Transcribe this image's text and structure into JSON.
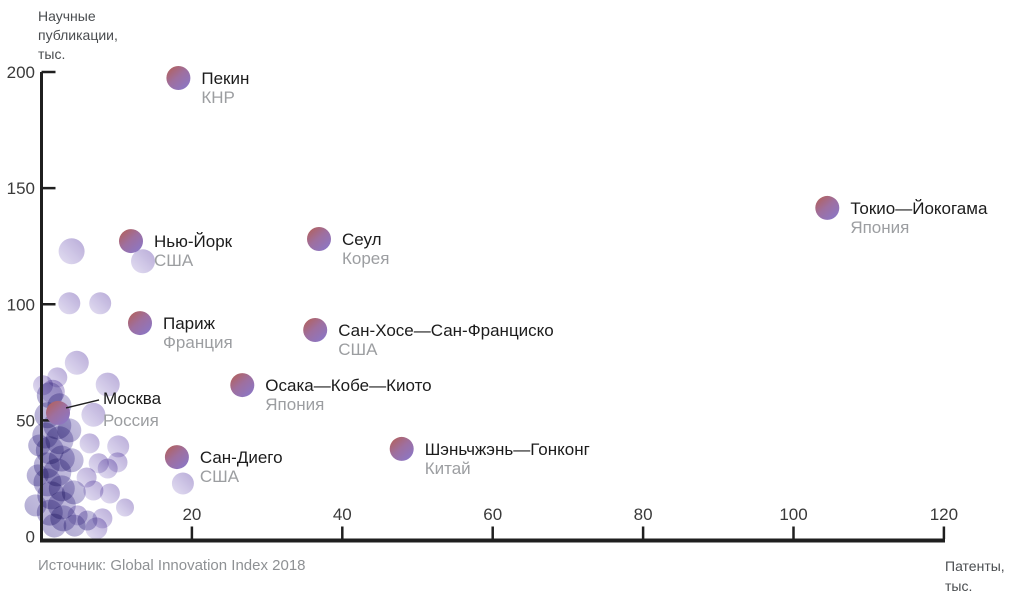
{
  "chart_data": {
    "type": "scatter",
    "title": "",
    "y_axis": {
      "title_lines": [
        "Научные",
        "публикации,",
        "тыс."
      ],
      "range": [
        0,
        200
      ],
      "ticks": [
        0,
        50,
        100,
        150,
        200
      ]
    },
    "x_axis": {
      "title_lines": [
        "Патенты,",
        "тыс."
      ],
      "range": [
        0,
        120
      ],
      "ticks": [
        20,
        40,
        60,
        80,
        100,
        120
      ]
    },
    "source": "Источник: Global Innovation Index 2018",
    "series": [
      {
        "city": "Пекин",
        "country": "КНР",
        "x": 18.2,
        "y": 197.4
      },
      {
        "city": "Токио—Йокогама",
        "country": "Япония",
        "x": 104.5,
        "y": 141.5
      },
      {
        "city": "Нью-Йорк",
        "country": "США",
        "x": 11.9,
        "y": 127.2
      },
      {
        "city": "Сеул",
        "country": "Корея",
        "x": 36.9,
        "y": 128.1
      },
      {
        "city": "Париж",
        "country": "Франция",
        "x": 13.1,
        "y": 91.9
      },
      {
        "city": "Сан-Хосе—Сан-Франциско",
        "country": "США",
        "x": 36.4,
        "y": 88.9
      },
      {
        "city": "Осака—Кобе—Киото",
        "country": "Япония",
        "x": 26.7,
        "y": 65.2
      },
      {
        "city": "Москва",
        "country": "Россия",
        "x": 2.2,
        "y": 53.2,
        "leader": true
      },
      {
        "city": "Сан-Диего",
        "country": "США",
        "x": 18.0,
        "y": 34.2
      },
      {
        "city": "Шэньчжэнь—Гонконг",
        "country": "Китай",
        "x": 47.9,
        "y": 37.7
      }
    ],
    "background_points": [
      {
        "x": 4.0,
        "y": 122.8,
        "r": 13,
        "k": "l"
      },
      {
        "x": 13.5,
        "y": 118.5,
        "r": 12,
        "k": "l"
      },
      {
        "x": 3.7,
        "y": 100.4,
        "r": 11,
        "k": "l"
      },
      {
        "x": 7.8,
        "y": 100.4,
        "r": 11,
        "k": "l"
      },
      {
        "x": 4.7,
        "y": 74.8,
        "r": 12,
        "k": "l"
      },
      {
        "x": 1.5,
        "y": 62.3,
        "r": 12,
        "k": "l"
      },
      {
        "x": 8.8,
        "y": 65.4,
        "r": 12,
        "k": "l"
      },
      {
        "x": 6.9,
        "y": 52.4,
        "r": 12,
        "k": "l"
      },
      {
        "x": 2.1,
        "y": 68.5,
        "r": 10,
        "k": "l"
      },
      {
        "x": 0.2,
        "y": 65.1,
        "r": 10,
        "k": "l"
      },
      {
        "x": 6.4,
        "y": 40.1,
        "r": 10,
        "k": "l"
      },
      {
        "x": 10.2,
        "y": 38.8,
        "r": 11,
        "k": "l"
      },
      {
        "x": 7.6,
        "y": 31.5,
        "r": 10,
        "k": "l"
      },
      {
        "x": 10.1,
        "y": 31.9,
        "r": 10,
        "k": "l"
      },
      {
        "x": 6.0,
        "y": 25.4,
        "r": 10,
        "k": "l"
      },
      {
        "x": 8.8,
        "y": 29.3,
        "r": 10,
        "k": "l"
      },
      {
        "x": 6.9,
        "y": 19.8,
        "r": 10,
        "k": "l"
      },
      {
        "x": 9.1,
        "y": 18.5,
        "r": 10,
        "k": "l"
      },
      {
        "x": 4.8,
        "y": 9.1,
        "r": 10,
        "k": "l"
      },
      {
        "x": 8.1,
        "y": 7.8,
        "r": 10,
        "k": "l"
      },
      {
        "x": 11.1,
        "y": 12.5,
        "r": 9,
        "k": "l"
      },
      {
        "x": 7.3,
        "y": 3.5,
        "r": 11,
        "k": "l"
      },
      {
        "x": 18.8,
        "y": 22.8,
        "r": 11,
        "k": "l"
      },
      {
        "x": 1.1,
        "y": 60.8,
        "r": 13,
        "k": "d"
      },
      {
        "x": 2.4,
        "y": 56.5,
        "r": 12,
        "k": "d"
      },
      {
        "x": 0.8,
        "y": 52.2,
        "r": 13,
        "k": "d"
      },
      {
        "x": 2.1,
        "y": 47.8,
        "r": 14,
        "k": "d"
      },
      {
        "x": 0.5,
        "y": 43.5,
        "r": 13,
        "k": "d"
      },
      {
        "x": 2.4,
        "y": 41.4,
        "r": 14,
        "k": "d"
      },
      {
        "x": 1.1,
        "y": 37.1,
        "r": 14,
        "k": "d"
      },
      {
        "x": 2.7,
        "y": 33.6,
        "r": 13,
        "k": "d"
      },
      {
        "x": 0.7,
        "y": 30.6,
        "r": 13,
        "k": "d"
      },
      {
        "x": 2.1,
        "y": 27.6,
        "r": 14,
        "k": "d"
      },
      {
        "x": 0.8,
        "y": 23.3,
        "r": 14,
        "k": "d"
      },
      {
        "x": 2.7,
        "y": 20.7,
        "r": 13,
        "k": "d"
      },
      {
        "x": 1.3,
        "y": 17.7,
        "r": 14,
        "k": "d"
      },
      {
        "x": 2.7,
        "y": 13.4,
        "r": 14,
        "k": "d"
      },
      {
        "x": 1.1,
        "y": 10.3,
        "r": 13,
        "k": "d"
      },
      {
        "x": 2.9,
        "y": 7.8,
        "r": 13,
        "k": "d"
      },
      {
        "x": 1.7,
        "y": 4.7,
        "r": 12,
        "k": "d"
      },
      {
        "x": 3.7,
        "y": 45.7,
        "r": 12,
        "k": "d"
      },
      {
        "x": 4.0,
        "y": 32.8,
        "r": 12,
        "k": "d"
      },
      {
        "x": 4.3,
        "y": 19.0,
        "r": 12,
        "k": "d"
      },
      {
        "x": -0.3,
        "y": 39.2,
        "r": 11,
        "k": "d"
      },
      {
        "x": -0.5,
        "y": 26.3,
        "r": 11,
        "k": "d"
      },
      {
        "x": -0.8,
        "y": 13.4,
        "r": 11,
        "k": "d"
      },
      {
        "x": 4.4,
        "y": 4.7,
        "r": 11,
        "k": "d"
      },
      {
        "x": 6.1,
        "y": 6.9,
        "r": 10,
        "k": "d"
      }
    ],
    "colors": {
      "background": "#ffffff",
      "axis": "#1f1f1f",
      "tick_text": "#3a3a3a",
      "city_text": "#1c1c1c",
      "country_text": "#9c9ea1",
      "axis_title_text": "#4a4d50",
      "source_text": "#8e9194",
      "accent_red": "#b65e51",
      "accent_mid": "#9e6f9f",
      "accent_purple": "#8a77c8",
      "light_dark": "#b2a4d5",
      "light_pale": "#e2ddf2",
      "dense_hi": "#8d82c1",
      "dense_lo": "#665aa8",
      "leader_line": "#1f1f1f"
    }
  }
}
